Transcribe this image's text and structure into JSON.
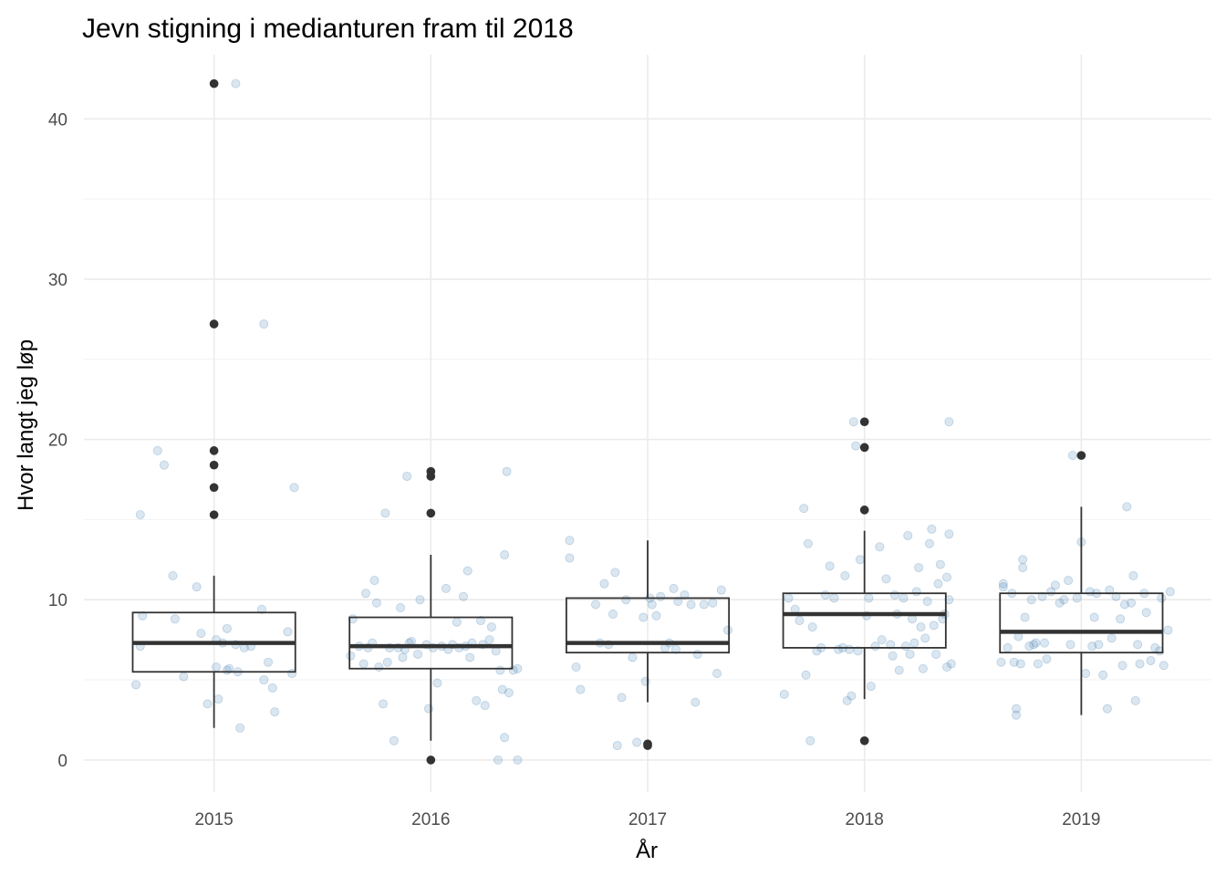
{
  "chart_data": {
    "type": "boxplot",
    "title": "Jevn stigning i medianturen fram til 2018",
    "xlabel": "År",
    "ylabel": "Hvor langt jeg løp",
    "categories": [
      "2015",
      "2016",
      "2017",
      "2018",
      "2019"
    ],
    "ylim": [
      -2,
      44
    ],
    "yticks": [
      0,
      10,
      20,
      30,
      40
    ],
    "grid": true,
    "box_color": "#333333",
    "jitter_color": "#4682b4",
    "boxes": [
      {
        "category": "2015",
        "q1": 5.5,
        "median": 7.3,
        "q3": 9.2,
        "whisker_low": 2.0,
        "whisker_high": 11.5,
        "outliers": [
          42.2,
          27.2,
          19.3,
          18.4,
          17.0,
          15.3
        ]
      },
      {
        "category": "2016",
        "q1": 5.7,
        "median": 7.1,
        "q3": 8.9,
        "whisker_low": 1.2,
        "whisker_high": 12.8,
        "outliers": [
          18.0,
          17.7,
          15.4,
          0.0
        ]
      },
      {
        "category": "2017",
        "q1": 6.7,
        "median": 7.3,
        "q3": 10.1,
        "whisker_low": 3.6,
        "whisker_high": 13.7,
        "outliers": [
          1.0,
          0.9
        ]
      },
      {
        "category": "2018",
        "q1": 7.0,
        "median": 9.1,
        "q3": 10.4,
        "whisker_low": 3.8,
        "whisker_high": 14.3,
        "outliers": [
          21.1,
          19.5,
          15.6,
          1.2
        ]
      },
      {
        "category": "2019",
        "q1": 6.7,
        "median": 8.0,
        "q3": 10.4,
        "whisker_low": 2.8,
        "whisker_high": 15.8,
        "outliers": [
          19.0
        ]
      }
    ],
    "points": [
      {
        "x": -0.36,
        "y": 4.7
      },
      {
        "x": -0.34,
        "y": 7.1
      },
      {
        "x": -0.34,
        "y": 15.3
      },
      {
        "x": -0.33,
        "y": 9.0
      },
      {
        "x": -0.26,
        "y": 19.3
      },
      {
        "x": -0.23,
        "y": 18.4
      },
      {
        "x": -0.19,
        "y": 11.5
      },
      {
        "x": -0.18,
        "y": 8.8
      },
      {
        "x": -0.14,
        "y": 5.2
      },
      {
        "x": -0.08,
        "y": 10.8
      },
      {
        "x": -0.06,
        "y": 7.9
      },
      {
        "x": -0.03,
        "y": 3.5
      },
      {
        "x": 0.0,
        "y": 42.2
      },
      {
        "x": 0.0,
        "y": 27.2
      },
      {
        "x": 0.0,
        "y": 19.3
      },
      {
        "x": 0.0,
        "y": 17.0
      },
      {
        "x": 0.01,
        "y": 7.5
      },
      {
        "x": 0.01,
        "y": 5.8
      },
      {
        "x": 0.02,
        "y": 3.8
      },
      {
        "x": 0.04,
        "y": 7.3
      },
      {
        "x": 0.06,
        "y": 5.6
      },
      {
        "x": 0.06,
        "y": 8.2
      },
      {
        "x": 0.07,
        "y": 5.7
      },
      {
        "x": 0.1,
        "y": 42.2
      },
      {
        "x": 0.1,
        "y": 7.2
      },
      {
        "x": 0.11,
        "y": 5.5
      },
      {
        "x": 0.12,
        "y": 2.0
      },
      {
        "x": 0.14,
        "y": 7.0
      },
      {
        "x": 0.17,
        "y": 7.1
      },
      {
        "x": 0.22,
        "y": 9.4
      },
      {
        "x": 0.23,
        "y": 5.0
      },
      {
        "x": 0.23,
        "y": 27.2
      },
      {
        "x": 0.25,
        "y": 6.1
      },
      {
        "x": 0.27,
        "y": 4.5
      },
      {
        "x": 0.28,
        "y": 3.0
      },
      {
        "x": 0.34,
        "y": 8.0
      },
      {
        "x": 0.36,
        "y": 5.4
      },
      {
        "x": 0.37,
        "y": 17.0
      },
      {
        "x": 0.63,
        "y": 6.5
      },
      {
        "x": 0.64,
        "y": 8.8
      },
      {
        "x": 0.67,
        "y": 7.1
      },
      {
        "x": 0.69,
        "y": 6.0
      },
      {
        "x": 0.7,
        "y": 10.4
      },
      {
        "x": 0.71,
        "y": 7.0
      },
      {
        "x": 0.73,
        "y": 7.3
      },
      {
        "x": 0.74,
        "y": 11.2
      },
      {
        "x": 0.75,
        "y": 9.8
      },
      {
        "x": 0.76,
        "y": 5.8
      },
      {
        "x": 0.78,
        "y": 3.5
      },
      {
        "x": 0.79,
        "y": 15.4
      },
      {
        "x": 0.8,
        "y": 6.1
      },
      {
        "x": 0.81,
        "y": 7.0
      },
      {
        "x": 0.83,
        "y": 1.2
      },
      {
        "x": 0.85,
        "y": 7.0
      },
      {
        "x": 0.86,
        "y": 9.5
      },
      {
        "x": 0.87,
        "y": 6.4
      },
      {
        "x": 0.88,
        "y": 6.9
      },
      {
        "x": 0.89,
        "y": 17.7
      },
      {
        "x": 0.9,
        "y": 7.3
      },
      {
        "x": 0.91,
        "y": 7.4
      },
      {
        "x": 0.94,
        "y": 6.6
      },
      {
        "x": 0.95,
        "y": 10.0
      },
      {
        "x": 0.98,
        "y": 7.2
      },
      {
        "x": 0.99,
        "y": 3.2
      },
      {
        "x": 1.0,
        "y": 18.0
      },
      {
        "x": 1.0,
        "y": 17.7
      },
      {
        "x": 1.0,
        "y": 15.4
      },
      {
        "x": 1.0,
        "y": 0.0
      },
      {
        "x": 1.01,
        "y": 7.0
      },
      {
        "x": 1.03,
        "y": 4.8
      },
      {
        "x": 1.05,
        "y": 7.1
      },
      {
        "x": 1.07,
        "y": 10.7
      },
      {
        "x": 1.08,
        "y": 6.9
      },
      {
        "x": 1.1,
        "y": 7.2
      },
      {
        "x": 1.12,
        "y": 8.6
      },
      {
        "x": 1.13,
        "y": 7.0
      },
      {
        "x": 1.15,
        "y": 10.2
      },
      {
        "x": 1.16,
        "y": 7.1
      },
      {
        "x": 1.17,
        "y": 11.8
      },
      {
        "x": 1.18,
        "y": 6.4
      },
      {
        "x": 1.19,
        "y": 7.3
      },
      {
        "x": 1.21,
        "y": 3.7
      },
      {
        "x": 1.23,
        "y": 8.7
      },
      {
        "x": 1.24,
        "y": 7.2
      },
      {
        "x": 1.25,
        "y": 3.4
      },
      {
        "x": 1.27,
        "y": 7.5
      },
      {
        "x": 1.28,
        "y": 8.3
      },
      {
        "x": 1.3,
        "y": 6.8
      },
      {
        "x": 1.31,
        "y": 0.0
      },
      {
        "x": 1.32,
        "y": 5.6
      },
      {
        "x": 1.33,
        "y": 4.4
      },
      {
        "x": 1.34,
        "y": 12.8
      },
      {
        "x": 1.34,
        "y": 1.4
      },
      {
        "x": 1.35,
        "y": 18.0
      },
      {
        "x": 1.36,
        "y": 4.2
      },
      {
        "x": 1.38,
        "y": 5.6
      },
      {
        "x": 1.4,
        "y": 0.0
      },
      {
        "x": 1.4,
        "y": 5.7
      },
      {
        "x": 1.64,
        "y": 13.7
      },
      {
        "x": 1.64,
        "y": 12.6
      },
      {
        "x": 1.67,
        "y": 5.8
      },
      {
        "x": 1.69,
        "y": 4.4
      },
      {
        "x": 1.76,
        "y": 9.7
      },
      {
        "x": 1.78,
        "y": 7.3
      },
      {
        "x": 1.8,
        "y": 11.0
      },
      {
        "x": 1.82,
        "y": 7.2
      },
      {
        "x": 1.84,
        "y": 9.1
      },
      {
        "x": 1.85,
        "y": 11.7
      },
      {
        "x": 1.86,
        "y": 0.9
      },
      {
        "x": 1.88,
        "y": 3.9
      },
      {
        "x": 1.9,
        "y": 10.0
      },
      {
        "x": 1.93,
        "y": 6.4
      },
      {
        "x": 1.95,
        "y": 1.1
      },
      {
        "x": 1.98,
        "y": 8.9
      },
      {
        "x": 1.99,
        "y": 4.9
      },
      {
        "x": 2.0,
        "y": 1.0
      },
      {
        "x": 2.0,
        "y": 0.9
      },
      {
        "x": 2.01,
        "y": 10.1
      },
      {
        "x": 2.02,
        "y": 9.7
      },
      {
        "x": 2.04,
        "y": 9.0
      },
      {
        "x": 2.06,
        "y": 10.2
      },
      {
        "x": 2.08,
        "y": 7.0
      },
      {
        "x": 2.1,
        "y": 7.3
      },
      {
        "x": 2.12,
        "y": 10.7
      },
      {
        "x": 2.13,
        "y": 6.9
      },
      {
        "x": 2.14,
        "y": 9.9
      },
      {
        "x": 2.17,
        "y": 10.3
      },
      {
        "x": 2.2,
        "y": 9.7
      },
      {
        "x": 2.22,
        "y": 3.6
      },
      {
        "x": 2.23,
        "y": 6.6
      },
      {
        "x": 2.26,
        "y": 9.7
      },
      {
        "x": 2.3,
        "y": 9.8
      },
      {
        "x": 2.32,
        "y": 5.4
      },
      {
        "x": 2.34,
        "y": 10.6
      },
      {
        "x": 2.37,
        "y": 8.1
      },
      {
        "x": 2.63,
        "y": 4.1
      },
      {
        "x": 2.65,
        "y": 10.1
      },
      {
        "x": 2.68,
        "y": 9.4
      },
      {
        "x": 2.7,
        "y": 8.7
      },
      {
        "x": 2.72,
        "y": 15.7
      },
      {
        "x": 2.73,
        "y": 5.3
      },
      {
        "x": 2.74,
        "y": 13.5
      },
      {
        "x": 2.75,
        "y": 1.2
      },
      {
        "x": 2.76,
        "y": 8.3
      },
      {
        "x": 2.78,
        "y": 6.8
      },
      {
        "x": 2.8,
        "y": 7.0
      },
      {
        "x": 2.82,
        "y": 10.3
      },
      {
        "x": 2.84,
        "y": 12.1
      },
      {
        "x": 2.86,
        "y": 10.1
      },
      {
        "x": 2.88,
        "y": 6.9
      },
      {
        "x": 2.9,
        "y": 7.0
      },
      {
        "x": 2.91,
        "y": 11.5
      },
      {
        "x": 2.92,
        "y": 3.7
      },
      {
        "x": 2.93,
        "y": 6.9
      },
      {
        "x": 2.94,
        "y": 4.0
      },
      {
        "x": 2.95,
        "y": 21.1
      },
      {
        "x": 2.96,
        "y": 19.6
      },
      {
        "x": 2.97,
        "y": 6.8
      },
      {
        "x": 2.98,
        "y": 12.5
      },
      {
        "x": 3.0,
        "y": 21.1
      },
      {
        "x": 3.0,
        "y": 19.5
      },
      {
        "x": 3.0,
        "y": 15.6
      },
      {
        "x": 3.0,
        "y": 1.2
      },
      {
        "x": 3.01,
        "y": 9.0
      },
      {
        "x": 3.02,
        "y": 10.1
      },
      {
        "x": 3.03,
        "y": 4.6
      },
      {
        "x": 3.05,
        "y": 7.1
      },
      {
        "x": 3.07,
        "y": 13.3
      },
      {
        "x": 3.08,
        "y": 7.5
      },
      {
        "x": 3.1,
        "y": 11.3
      },
      {
        "x": 3.12,
        "y": 7.2
      },
      {
        "x": 3.13,
        "y": 6.5
      },
      {
        "x": 3.14,
        "y": 10.3
      },
      {
        "x": 3.15,
        "y": 9.1
      },
      {
        "x": 3.16,
        "y": 5.6
      },
      {
        "x": 3.18,
        "y": 10.1
      },
      {
        "x": 3.19,
        "y": 7.1
      },
      {
        "x": 3.2,
        "y": 14.0
      },
      {
        "x": 3.21,
        "y": 6.6
      },
      {
        "x": 3.22,
        "y": 8.8
      },
      {
        "x": 3.23,
        "y": 7.3
      },
      {
        "x": 3.24,
        "y": 10.5
      },
      {
        "x": 3.25,
        "y": 12.0
      },
      {
        "x": 3.26,
        "y": 8.3
      },
      {
        "x": 3.27,
        "y": 5.7
      },
      {
        "x": 3.28,
        "y": 7.6
      },
      {
        "x": 3.29,
        "y": 9.9
      },
      {
        "x": 3.3,
        "y": 13.5
      },
      {
        "x": 3.31,
        "y": 14.4
      },
      {
        "x": 3.32,
        "y": 8.4
      },
      {
        "x": 3.33,
        "y": 6.6
      },
      {
        "x": 3.34,
        "y": 11.0
      },
      {
        "x": 3.35,
        "y": 12.2
      },
      {
        "x": 3.36,
        "y": 8.8
      },
      {
        "x": 3.37,
        "y": 9.1
      },
      {
        "x": 3.38,
        "y": 11.4
      },
      {
        "x": 3.38,
        "y": 5.8
      },
      {
        "x": 3.39,
        "y": 14.1
      },
      {
        "x": 3.39,
        "y": 10.0
      },
      {
        "x": 3.39,
        "y": 21.1
      },
      {
        "x": 3.4,
        "y": 6.0
      },
      {
        "x": 3.63,
        "y": 6.1
      },
      {
        "x": 3.64,
        "y": 11.0
      },
      {
        "x": 3.64,
        "y": 10.8
      },
      {
        "x": 3.66,
        "y": 7.0
      },
      {
        "x": 3.68,
        "y": 10.4
      },
      {
        "x": 3.69,
        "y": 6.1
      },
      {
        "x": 3.7,
        "y": 3.2
      },
      {
        "x": 3.7,
        "y": 2.8
      },
      {
        "x": 3.71,
        "y": 7.7
      },
      {
        "x": 3.72,
        "y": 6.0
      },
      {
        "x": 3.73,
        "y": 12.0
      },
      {
        "x": 3.73,
        "y": 12.5
      },
      {
        "x": 3.74,
        "y": 8.9
      },
      {
        "x": 3.76,
        "y": 7.1
      },
      {
        "x": 3.77,
        "y": 10.0
      },
      {
        "x": 3.78,
        "y": 7.2
      },
      {
        "x": 3.79,
        "y": 7.3
      },
      {
        "x": 3.8,
        "y": 6.0
      },
      {
        "x": 3.82,
        "y": 10.2
      },
      {
        "x": 3.83,
        "y": 7.3
      },
      {
        "x": 3.84,
        "y": 6.3
      },
      {
        "x": 3.86,
        "y": 10.5
      },
      {
        "x": 3.88,
        "y": 10.9
      },
      {
        "x": 3.9,
        "y": 9.8
      },
      {
        "x": 3.92,
        "y": 10.0
      },
      {
        "x": 3.94,
        "y": 11.2
      },
      {
        "x": 3.95,
        "y": 7.2
      },
      {
        "x": 3.96,
        "y": 19.0
      },
      {
        "x": 3.98,
        "y": 10.1
      },
      {
        "x": 4.0,
        "y": 19.0
      },
      {
        "x": 4.0,
        "y": 13.6
      },
      {
        "x": 4.02,
        "y": 5.4
      },
      {
        "x": 4.04,
        "y": 10.5
      },
      {
        "x": 4.05,
        "y": 7.1
      },
      {
        "x": 4.06,
        "y": 8.9
      },
      {
        "x": 4.07,
        "y": 10.4
      },
      {
        "x": 4.08,
        "y": 7.2
      },
      {
        "x": 4.1,
        "y": 5.3
      },
      {
        "x": 4.12,
        "y": 3.2
      },
      {
        "x": 4.13,
        "y": 10.6
      },
      {
        "x": 4.14,
        "y": 7.6
      },
      {
        "x": 4.16,
        "y": 10.2
      },
      {
        "x": 4.18,
        "y": 8.8
      },
      {
        "x": 4.19,
        "y": 5.9
      },
      {
        "x": 4.2,
        "y": 9.7
      },
      {
        "x": 4.21,
        "y": 15.8
      },
      {
        "x": 4.23,
        "y": 9.8
      },
      {
        "x": 4.24,
        "y": 11.5
      },
      {
        "x": 4.25,
        "y": 3.7
      },
      {
        "x": 4.26,
        "y": 7.2
      },
      {
        "x": 4.27,
        "y": 6.0
      },
      {
        "x": 4.29,
        "y": 10.4
      },
      {
        "x": 4.3,
        "y": 9.2
      },
      {
        "x": 4.32,
        "y": 6.2
      },
      {
        "x": 4.34,
        "y": 7.0
      },
      {
        "x": 4.36,
        "y": 6.8
      },
      {
        "x": 4.37,
        "y": 10.1
      },
      {
        "x": 4.38,
        "y": 5.9
      },
      {
        "x": 4.4,
        "y": 8.1
      },
      {
        "x": 4.41,
        "y": 10.5
      }
    ]
  }
}
